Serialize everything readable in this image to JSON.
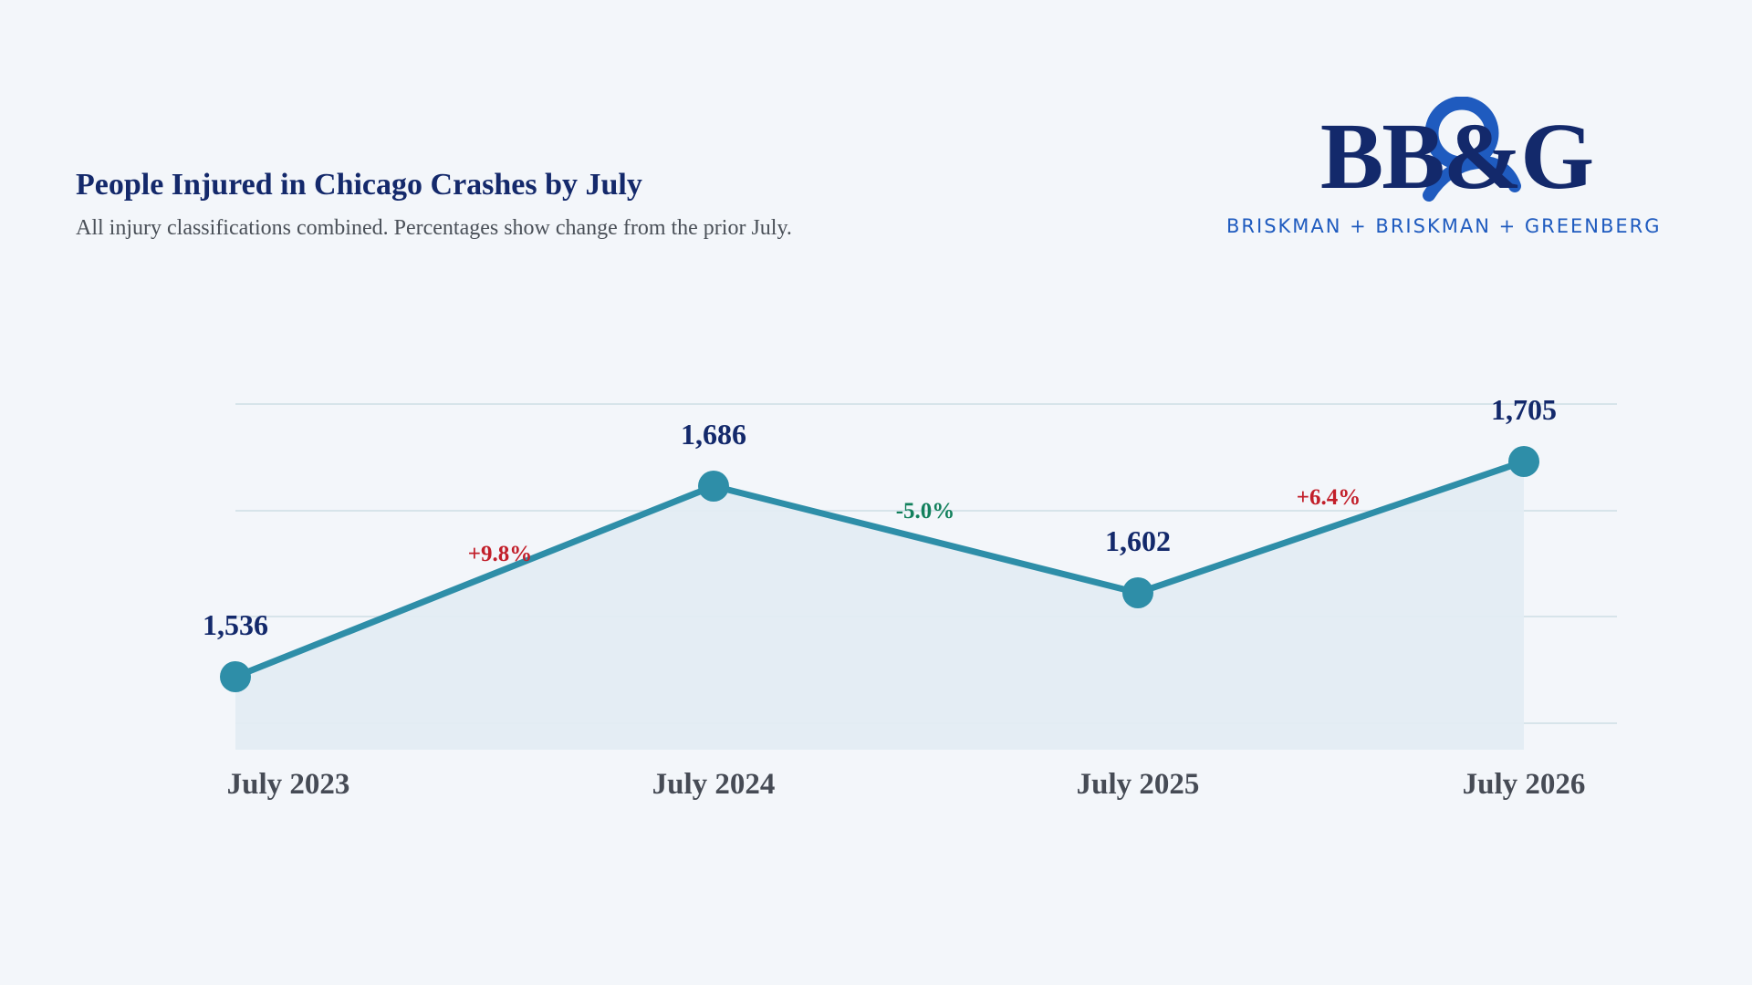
{
  "header": {
    "title": "People Injured in Chicago Crashes by July",
    "subtitle": "All injury classifications combined. Percentages show change from the prior July."
  },
  "logo": {
    "wordmark": "BB&G",
    "tagline": "BRISKMAN + BRISKMAN + GREENBERG",
    "colors": {
      "navy": "#13296b",
      "blue": "#1f5bbf"
    }
  },
  "chart_data": {
    "type": "line",
    "title": "People Injured in Chicago Crashes by July",
    "subtitle": "All injury classifications combined. Percentages show change from the prior July.",
    "categories": [
      "July 2023",
      "July 2024",
      "July 2025",
      "July 2026"
    ],
    "values": [
      1536,
      1686,
      1602,
      1705
    ],
    "value_labels": [
      "1,536",
      "1,686",
      "1,602",
      "1,705"
    ],
    "changes": [
      {
        "label": "+9.8%",
        "direction": "up"
      },
      {
        "label": "-5.0%",
        "direction": "down"
      },
      {
        "label": "+6.4%",
        "direction": "up"
      }
    ],
    "ylim": [
      1480,
      1780
    ],
    "grid": true,
    "area_fill": true,
    "colors": {
      "line": "#2e8ea8",
      "marker": "#2e8ea8",
      "area": "#e3ecf3",
      "grid": "#d7e4ea",
      "value_label": "#13296b",
      "x_label": "#464b55",
      "change_up": "#c21f2a",
      "change_down": "#12805c"
    }
  }
}
